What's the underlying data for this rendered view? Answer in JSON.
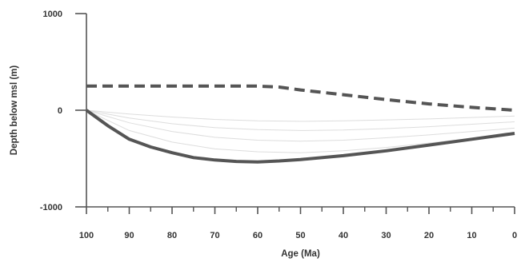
{
  "chart_data": {
    "type": "line",
    "xlabel": "Age (Ma)",
    "ylabel": "Depth below msl (m)",
    "xlim": [
      100,
      0
    ],
    "ylim": [
      -1000,
      1000
    ],
    "x_reversed": true,
    "x_ticks": [
      100,
      90,
      80,
      70,
      60,
      50,
      40,
      30,
      20,
      10,
      0
    ],
    "y_ticks": [
      1000,
      0,
      -1000
    ],
    "grid": false,
    "series": [
      {
        "style": "dashed",
        "color": "#555555",
        "x": [
          100,
          90,
          80,
          70,
          60,
          55,
          50,
          40,
          30,
          20,
          10,
          0
        ],
        "y": [
          250,
          250,
          250,
          250,
          250,
          240,
          210,
          160,
          110,
          65,
          30,
          0
        ]
      },
      {
        "style": "solid",
        "color": "#555555",
        "x": [
          100,
          95,
          90,
          85,
          80,
          75,
          70,
          65,
          60,
          55,
          50,
          40,
          30,
          20,
          10,
          0
        ],
        "y": [
          0,
          -160,
          -300,
          -380,
          -440,
          -490,
          -515,
          -530,
          -535,
          -525,
          -510,
          -470,
          -420,
          -360,
          -300,
          -240
        ]
      }
    ],
    "faint_curves": {
      "color": "#dddddd",
      "x": [
        100,
        90,
        80,
        70,
        60,
        50,
        40,
        30,
        20,
        10,
        0
      ],
      "y_sets": [
        [
          0,
          -40,
          -70,
          -95,
          -110,
          -115,
          -110,
          -100,
          -90,
          -75,
          -60
        ],
        [
          0,
          -80,
          -140,
          -180,
          -200,
          -210,
          -205,
          -190,
          -170,
          -145,
          -120
        ],
        [
          0,
          -130,
          -220,
          -280,
          -310,
          -320,
          -310,
          -285,
          -255,
          -220,
          -185
        ],
        [
          0,
          -210,
          -330,
          -400,
          -430,
          -440,
          -420,
          -385,
          -340,
          -290,
          -240
        ]
      ]
    }
  }
}
